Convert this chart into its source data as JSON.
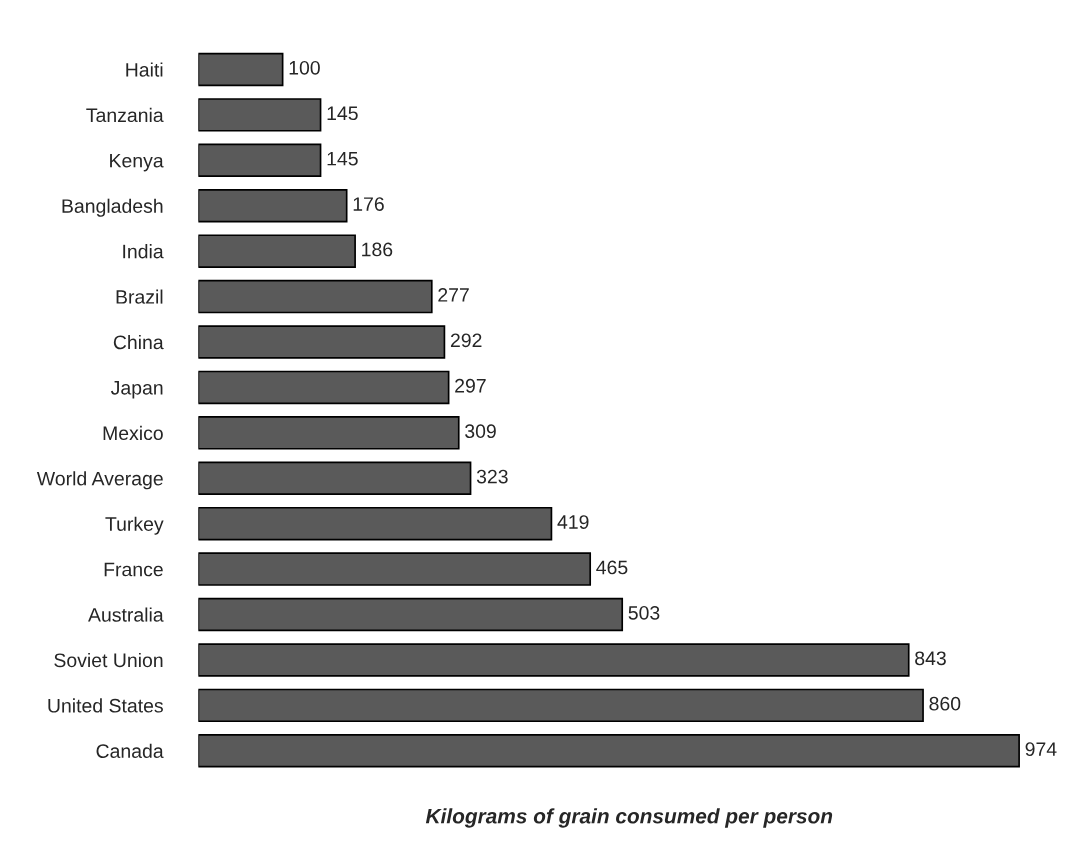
{
  "chart_data": {
    "type": "bar",
    "orientation": "horizontal",
    "xlabel": "Kilograms of grain consumed per person",
    "categories": [
      "Haiti",
      "Tanzania",
      "Kenya",
      "Bangladesh",
      "India",
      "Brazil",
      "China",
      "Japan",
      "Mexico",
      "World Average",
      "Turkey",
      "France",
      "Australia",
      "Soviet Union",
      "United States",
      "Canada"
    ],
    "values": [
      100,
      145,
      145,
      176,
      186,
      277,
      292,
      297,
      309,
      323,
      419,
      465,
      503,
      843,
      860,
      974
    ],
    "color": "#5a5a5a",
    "data_labels": true,
    "grid": false,
    "legend": false
  }
}
